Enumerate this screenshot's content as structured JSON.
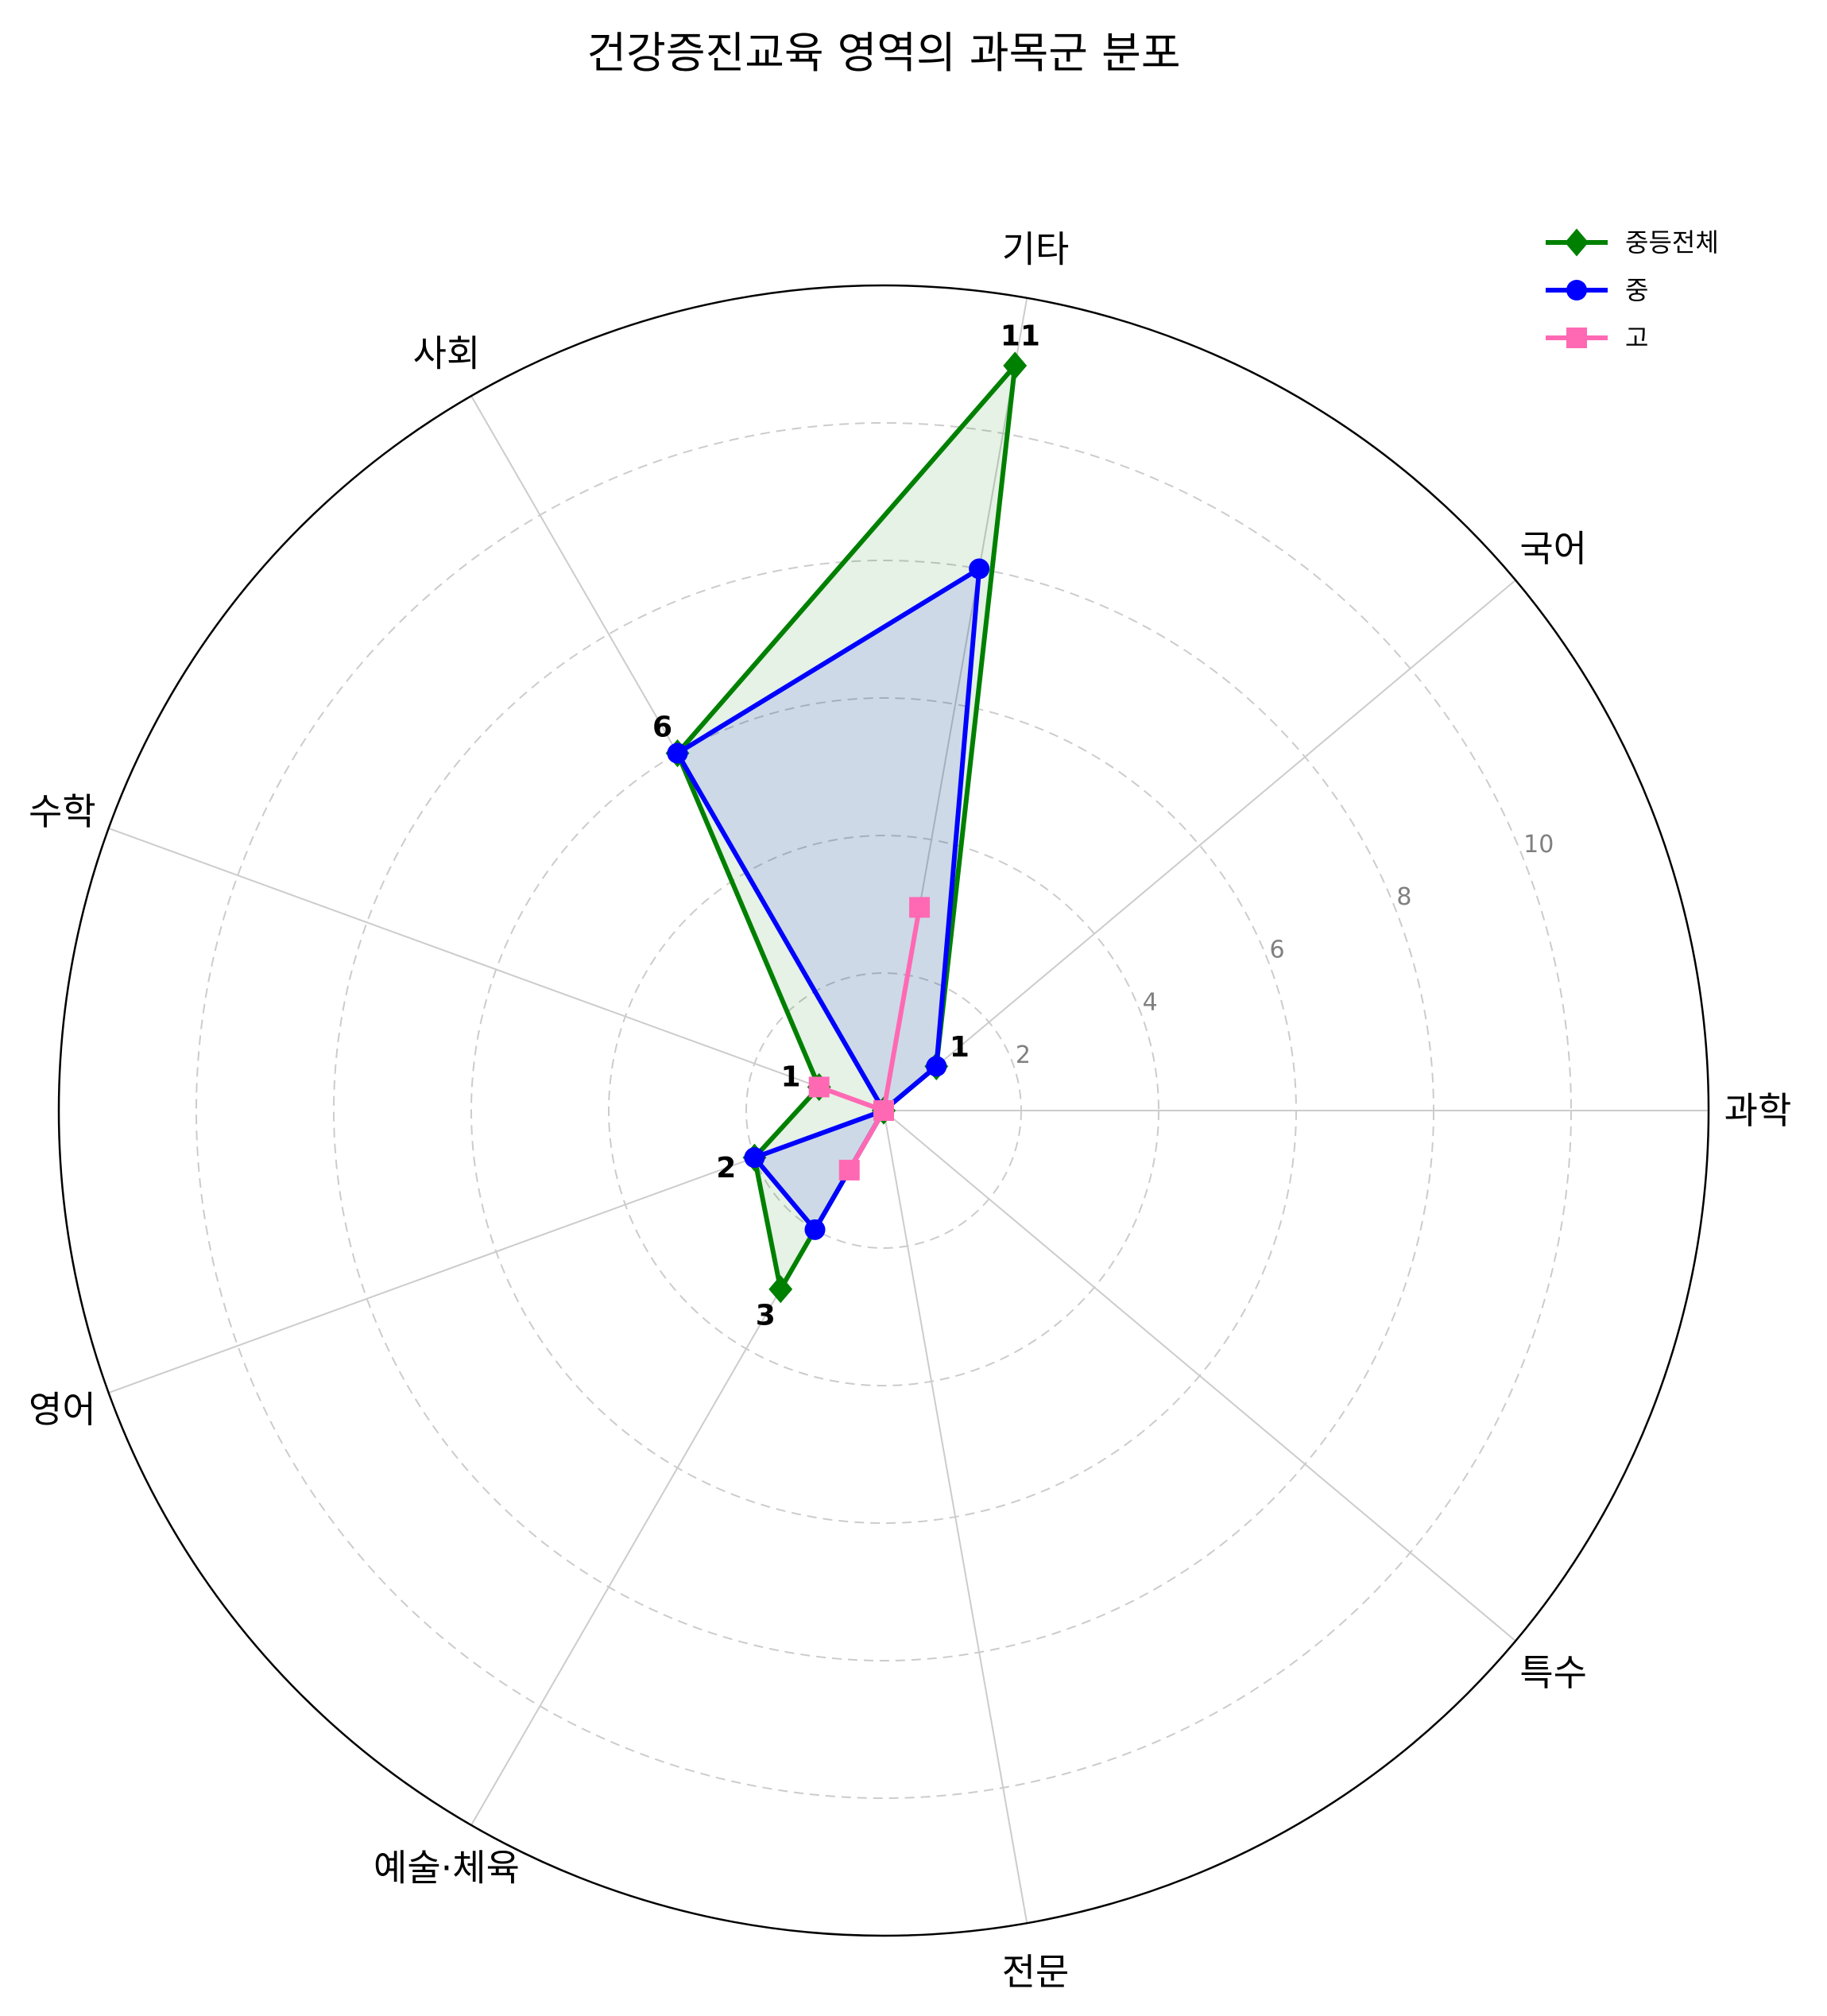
{
  "chart_data": {
    "type": "radar",
    "title": "건강증진교육 영역의 과목군 분포",
    "categories": [
      "과학",
      "국어",
      "기타",
      "사회",
      "수학",
      "영어",
      "예술·체육",
      "전문",
      "특수"
    ],
    "rmax": 12,
    "rticks": [
      2,
      4,
      6,
      8,
      10
    ],
    "grid": true,
    "legend_position": "top-right",
    "series": [
      {
        "name": "중등전체",
        "color": "#008000",
        "marker": "diamond",
        "fill": true,
        "values": [
          0,
          1,
          11,
          6,
          1,
          2,
          3,
          0,
          0
        ]
      },
      {
        "name": "중",
        "color": "#0000ff",
        "marker": "circle",
        "fill": true,
        "values": [
          0,
          1,
          8,
          6,
          0,
          2,
          2,
          0,
          0
        ]
      },
      {
        "name": "고",
        "color": "#ff69b4",
        "marker": "square",
        "fill": false,
        "values": [
          0,
          0,
          3,
          0,
          1,
          0,
          1,
          0,
          0
        ]
      }
    ],
    "data_labels": [
      {
        "category_index": 1,
        "text": "1"
      },
      {
        "category_index": 2,
        "text": "11"
      },
      {
        "category_index": 3,
        "text": "6"
      },
      {
        "category_index": 4,
        "text": "1"
      },
      {
        "category_index": 5,
        "text": "2"
      },
      {
        "category_index": 6,
        "text": "3"
      }
    ]
  }
}
